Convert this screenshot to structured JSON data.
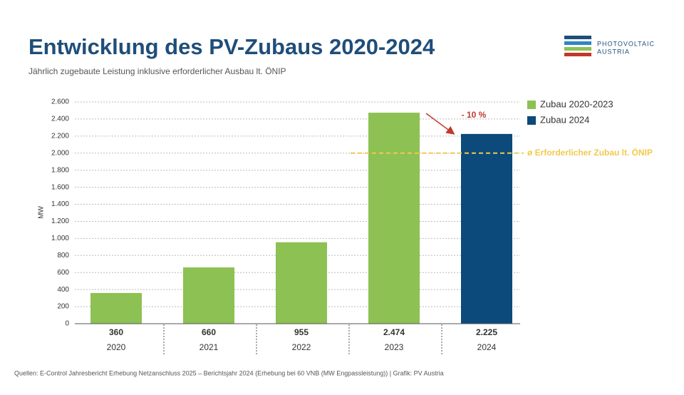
{
  "chart_data": {
    "type": "bar",
    "title": "Entwicklung des PV-Zubaus 2020-2024",
    "subtitle": "Jährlich zugebaute Leistung inklusive erforderlicher Ausbau lt. ÖNIP",
    "y_label": "MW",
    "categories": [
      "2020",
      "2021",
      "2022",
      "2023",
      "2024"
    ],
    "series": [
      {
        "name": "Zubau 2020-2023",
        "color": "#8dc153",
        "values": [
          360,
          660,
          955,
          2474,
          null
        ],
        "value_labels": [
          "360",
          "660",
          "955",
          "2.474",
          null
        ]
      },
      {
        "name": "Zubau 2024",
        "color": "#0b4a7a",
        "values": [
          null,
          null,
          null,
          null,
          2225
        ],
        "value_labels": [
          null,
          null,
          null,
          null,
          "2.225"
        ]
      }
    ],
    "ylim": [
      0,
      2600
    ],
    "yticks": [
      0,
      200,
      400,
      600,
      800,
      {
        "value": 1000,
        "label": "1.000"
      },
      {
        "value": 1200,
        "label": "1.200"
      },
      {
        "value": 1400,
        "label": "1.400"
      },
      {
        "value": 1600,
        "label": "1.600"
      },
      {
        "value": 1800,
        "label": "1.800"
      },
      {
        "value": 2000,
        "label": "2.000"
      },
      {
        "value": 2200,
        "label": "2.200"
      },
      {
        "value": 2400,
        "label": "2.400"
      },
      {
        "value": 2600,
        "label": "2.600"
      }
    ],
    "grid": true,
    "legend": "right",
    "reference_line": {
      "value": 2000,
      "label": "ø Erforderlicher Zubau lt. ÖNIP",
      "color": "#f2c94c"
    },
    "annotation": {
      "text": "- 10 %",
      "color": "#c0392b"
    },
    "logo": [
      "PHOTOVOLTAIC",
      "AUSTRIA"
    ],
    "source": "Quellen: E-Control Jahresbericht Erhebung Netzanschluss 2025 – Berichtsjahr 2024 (Erhebung bei 60 VNB (MW Engpassleistung)) | Grafik: PV Austria"
  }
}
